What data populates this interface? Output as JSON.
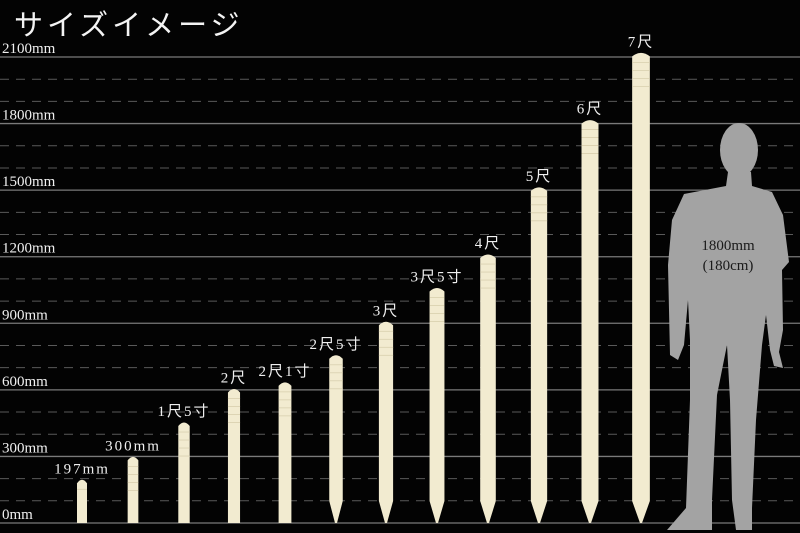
{
  "title": "サイズイメージ",
  "chart_data": {
    "type": "bar",
    "title": "サイズイメージ",
    "ylim": [
      0,
      2100
    ],
    "y_unit": "mm",
    "y_ticks": [
      0,
      300,
      600,
      900,
      1200,
      1500,
      1800,
      2100
    ],
    "y_tick_labels": [
      "0mm",
      "300mm",
      "600mm",
      "900mm",
      "1200mm",
      "1500mm",
      "1800mm",
      "2100mm"
    ],
    "minor_grid_step": 100,
    "grid": true,
    "categories": [
      "197mm",
      "300mm",
      "1尺5寸",
      "2尺",
      "2尺1寸",
      "2尺5寸",
      "3尺",
      "3尺5寸",
      "4尺",
      "5尺",
      "6尺",
      "7尺"
    ],
    "values": [
      197,
      300,
      455,
      606,
      636,
      758,
      909,
      1061,
      1212,
      1515,
      1818,
      2121
    ],
    "pointed": [
      false,
      false,
      false,
      false,
      false,
      true,
      true,
      true,
      true,
      true,
      true,
      true
    ],
    "bar_color": "#f2ebd0",
    "reference": {
      "label_1": "1800mm",
      "label_2": "(180cm)",
      "value": 1800,
      "color": "#a3a3a3"
    }
  }
}
